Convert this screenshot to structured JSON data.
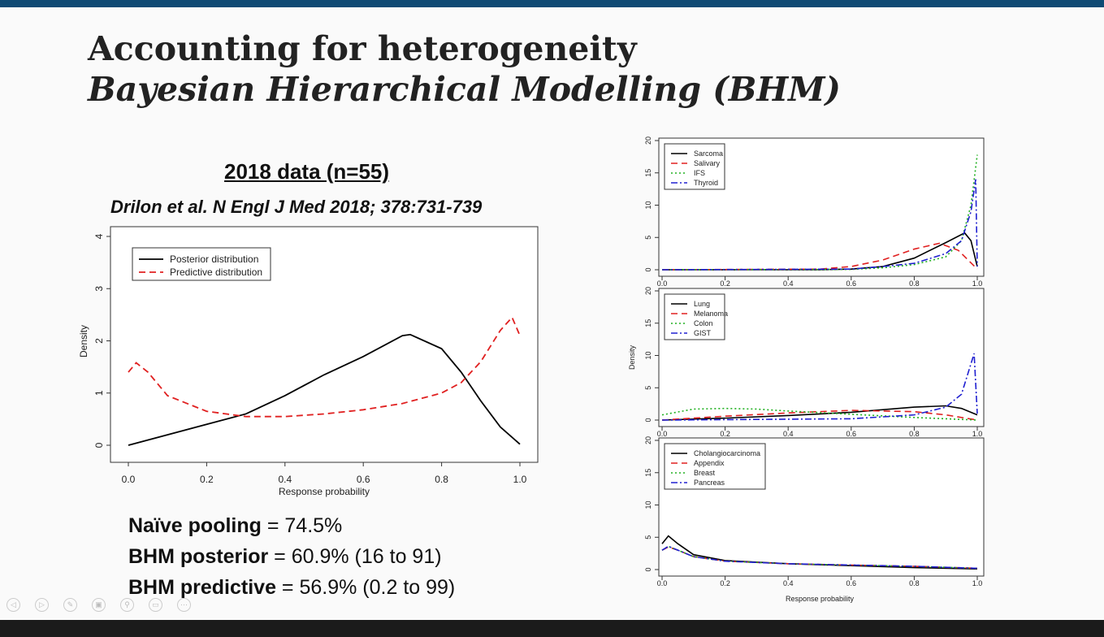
{
  "slide": {
    "title_line1": "Accounting for heterogeneity",
    "title_line2": "Bayesian Hierarchical Modelling (BHM)",
    "subtitle": "2018 data (n=55)",
    "citation": "Drilon et al. N Engl J Med 2018; 378:731-739",
    "stats": [
      {
        "label": "Naïve pooling",
        "value": " = 74.5%"
      },
      {
        "label": "BHM posterior",
        "value": " = 60.9% (16 to 91)"
      },
      {
        "label": "BHM predictive",
        "value": " = 56.9% (0.2 to 99)"
      }
    ]
  },
  "controls": [
    "prev-icon",
    "next-icon",
    "pen-icon",
    "slides-icon",
    "zoom-icon",
    "subtitles-icon",
    "more-icon"
  ],
  "chart_data": [
    {
      "type": "line",
      "title": "",
      "xlabel": "Response probability",
      "ylabel": "Density",
      "xlim": [
        0,
        1
      ],
      "ylim": [
        0,
        4
      ],
      "xticks": [
        "0.0",
        "0.2",
        "0.4",
        "0.6",
        "0.8",
        "1.0"
      ],
      "yticks": [
        "0",
        "1",
        "2",
        "3",
        "4"
      ],
      "legend": "top-left",
      "series": [
        {
          "name": "Posterior distribution",
          "color": "#000000",
          "dash": "solid",
          "x": [
            0,
            0.1,
            0.2,
            0.3,
            0.4,
            0.5,
            0.6,
            0.7,
            0.72,
            0.8,
            0.85,
            0.9,
            0.95,
            1.0
          ],
          "y": [
            0,
            0.2,
            0.4,
            0.6,
            0.95,
            1.35,
            1.7,
            2.1,
            2.12,
            1.85,
            1.4,
            0.85,
            0.35,
            0.02
          ]
        },
        {
          "name": "Predictive distribution",
          "color": "#e02020",
          "dash": "dashed",
          "x": [
            0,
            0.02,
            0.05,
            0.1,
            0.2,
            0.3,
            0.4,
            0.5,
            0.6,
            0.7,
            0.8,
            0.85,
            0.9,
            0.95,
            0.98,
            1.0
          ],
          "y": [
            1.4,
            1.58,
            1.4,
            0.95,
            0.65,
            0.55,
            0.55,
            0.6,
            0.68,
            0.8,
            1.0,
            1.2,
            1.6,
            2.2,
            2.45,
            2.1
          ]
        }
      ]
    },
    {
      "type": "line",
      "xlabel": "",
      "ylabel": "",
      "xlim": [
        0,
        1
      ],
      "ylim": [
        0,
        20
      ],
      "xticks": [
        "0.0",
        "0.2",
        "0.4",
        "0.6",
        "0.8",
        "1.0"
      ],
      "yticks": [
        "0",
        "5",
        "10",
        "15",
        "20"
      ],
      "legend": "top-left",
      "series": [
        {
          "name": "Sarcoma",
          "color": "#000000",
          "dash": "solid",
          "x": [
            0,
            0.5,
            0.6,
            0.7,
            0.8,
            0.9,
            0.96,
            0.98,
            1.0
          ],
          "y": [
            0,
            0,
            0.1,
            0.5,
            1.8,
            4.2,
            5.7,
            4.5,
            0.5
          ]
        },
        {
          "name": "Salivary",
          "color": "#e02020",
          "dash": "dashed",
          "x": [
            0,
            0.5,
            0.6,
            0.7,
            0.8,
            0.88,
            0.94,
            1.0
          ],
          "y": [
            0,
            0.1,
            0.5,
            1.5,
            3.2,
            4.1,
            3,
            0.1
          ]
        },
        {
          "name": "IFS",
          "color": "#20b020",
          "dash": "dotted",
          "x": [
            0,
            0.6,
            0.7,
            0.8,
            0.9,
            0.95,
            0.98,
            1.0
          ],
          "y": [
            0,
            0.05,
            0.3,
            0.8,
            2,
            4.5,
            10,
            17.8
          ]
        },
        {
          "name": "Thyroid",
          "color": "#2020d0",
          "dash": "dashdot",
          "x": [
            0,
            0.6,
            0.7,
            0.8,
            0.9,
            0.95,
            0.98,
            0.995,
            1.0
          ],
          "y": [
            0,
            0.1,
            0.5,
            1,
            2.5,
            4.5,
            9,
            14,
            0.5
          ]
        }
      ]
    },
    {
      "type": "line",
      "xlabel": "",
      "ylabel": "Density",
      "xlim": [
        0,
        1
      ],
      "ylim": [
        0,
        20
      ],
      "xticks": [
        "0.0",
        "0.2",
        "0.4",
        "0.6",
        "0.8",
        "1.0"
      ],
      "yticks": [
        "0",
        "5",
        "10",
        "15",
        "20"
      ],
      "legend": "top-left",
      "series": [
        {
          "name": "Lung",
          "color": "#000000",
          "dash": "solid",
          "x": [
            0,
            0.2,
            0.4,
            0.6,
            0.8,
            0.9,
            0.95,
            1.0
          ],
          "y": [
            0,
            0.3,
            0.7,
            1.2,
            2,
            2.2,
            1.8,
            0.8
          ]
        },
        {
          "name": "Melanoma",
          "color": "#e02020",
          "dash": "dashed",
          "x": [
            0,
            0.2,
            0.4,
            0.6,
            0.8,
            0.9,
            1.0
          ],
          "y": [
            0,
            0.6,
            1.1,
            1.5,
            1.3,
            0.8,
            0
          ]
        },
        {
          "name": "Colon",
          "color": "#20b020",
          "dash": "dotted",
          "x": [
            0,
            0.1,
            0.2,
            0.3,
            0.4,
            0.6,
            0.8,
            1.0
          ],
          "y": [
            0.8,
            1.7,
            1.8,
            1.7,
            1.4,
            0.9,
            0.4,
            0
          ]
        },
        {
          "name": "GIST",
          "color": "#2020d0",
          "dash": "dashdot",
          "x": [
            0,
            0.6,
            0.8,
            0.9,
            0.95,
            0.99,
            1.0
          ],
          "y": [
            0,
            0.2,
            0.8,
            2,
            4,
            10.3,
            1
          ]
        }
      ]
    },
    {
      "type": "line",
      "xlabel": "Response probability",
      "ylabel": "",
      "xlim": [
        0,
        1
      ],
      "ylim": [
        0,
        20
      ],
      "xticks": [
        "0.0",
        "0.2",
        "0.4",
        "0.6",
        "0.8",
        "1.0"
      ],
      "yticks": [
        "0",
        "5",
        "10",
        "15",
        "20"
      ],
      "legend": "top-left",
      "series": [
        {
          "name": "Cholangiocarcinoma",
          "color": "#000000",
          "dash": "solid",
          "x": [
            0,
            0.02,
            0.05,
            0.1,
            0.2,
            0.4,
            0.6,
            0.8,
            1.0
          ],
          "y": [
            4,
            5.2,
            4,
            2.3,
            1.4,
            0.9,
            0.6,
            0.3,
            0.1
          ]
        },
        {
          "name": "Appendix",
          "color": "#e02020",
          "dash": "dashed",
          "x": [
            0,
            0.02,
            0.05,
            0.1,
            0.2,
            0.4,
            0.6,
            0.8,
            1.0
          ],
          "y": [
            3,
            3.5,
            3,
            2,
            1.3,
            0.9,
            0.7,
            0.5,
            0.2
          ]
        },
        {
          "name": "Breast",
          "color": "#20b020",
          "dash": "dotted",
          "x": [
            0,
            0.02,
            0.05,
            0.1,
            0.2,
            0.4,
            0.6,
            0.8,
            1.0
          ],
          "y": [
            3,
            3.6,
            3,
            2,
            1.3,
            0.9,
            0.7,
            0.5,
            0.2
          ]
        },
        {
          "name": "Pancreas",
          "color": "#2020d0",
          "dash": "dashdot",
          "x": [
            0,
            0.02,
            0.05,
            0.1,
            0.2,
            0.4,
            0.6,
            0.8,
            1.0
          ],
          "y": [
            3,
            3.6,
            3,
            2,
            1.3,
            0.9,
            0.7,
            0.5,
            0.2
          ]
        }
      ]
    }
  ]
}
